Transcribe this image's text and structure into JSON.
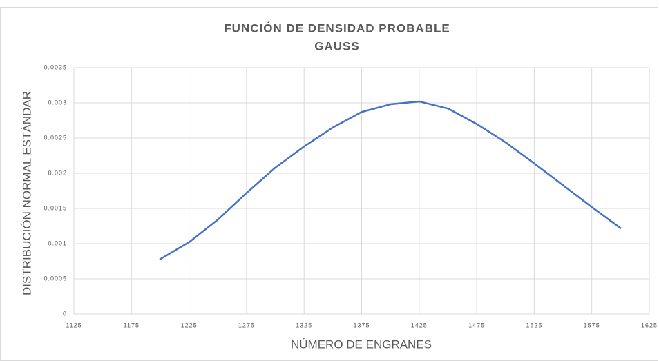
{
  "chart_data": {
    "type": "line",
    "title": [
      "FUNCIÓN DE DENSIDAD PROBABLE",
      "GAUSS"
    ],
    "xlabel": "NÚMERO DE ENGRANES",
    "ylabel": "DISTRIBUCIÓN NORMAL ESTÁNDAR",
    "x": [
      1200,
      1225,
      1250,
      1275,
      1300,
      1325,
      1350,
      1375,
      1400,
      1425,
      1450,
      1475,
      1500,
      1525,
      1550,
      1575,
      1600
    ],
    "series": [
      {
        "name": "Gauss",
        "color": "#4472c4",
        "values": [
          0.00078,
          0.00102,
          0.00134,
          0.00172,
          0.00208,
          0.00238,
          0.00265,
          0.00287,
          0.00298,
          0.00302,
          0.00292,
          0.0027,
          0.00244,
          0.00214,
          0.00183,
          0.00152,
          0.00122
        ]
      }
    ],
    "xlim": [
      1125,
      1625
    ],
    "xticks": [
      1125,
      1175,
      1225,
      1275,
      1325,
      1375,
      1425,
      1475,
      1525,
      1575,
      1625
    ],
    "ylim": [
      0,
      0.0035
    ],
    "yticks": [
      0,
      0.0005,
      0.001,
      0.0015,
      0.002,
      0.0025,
      0.003,
      0.0035
    ],
    "grid": true
  }
}
